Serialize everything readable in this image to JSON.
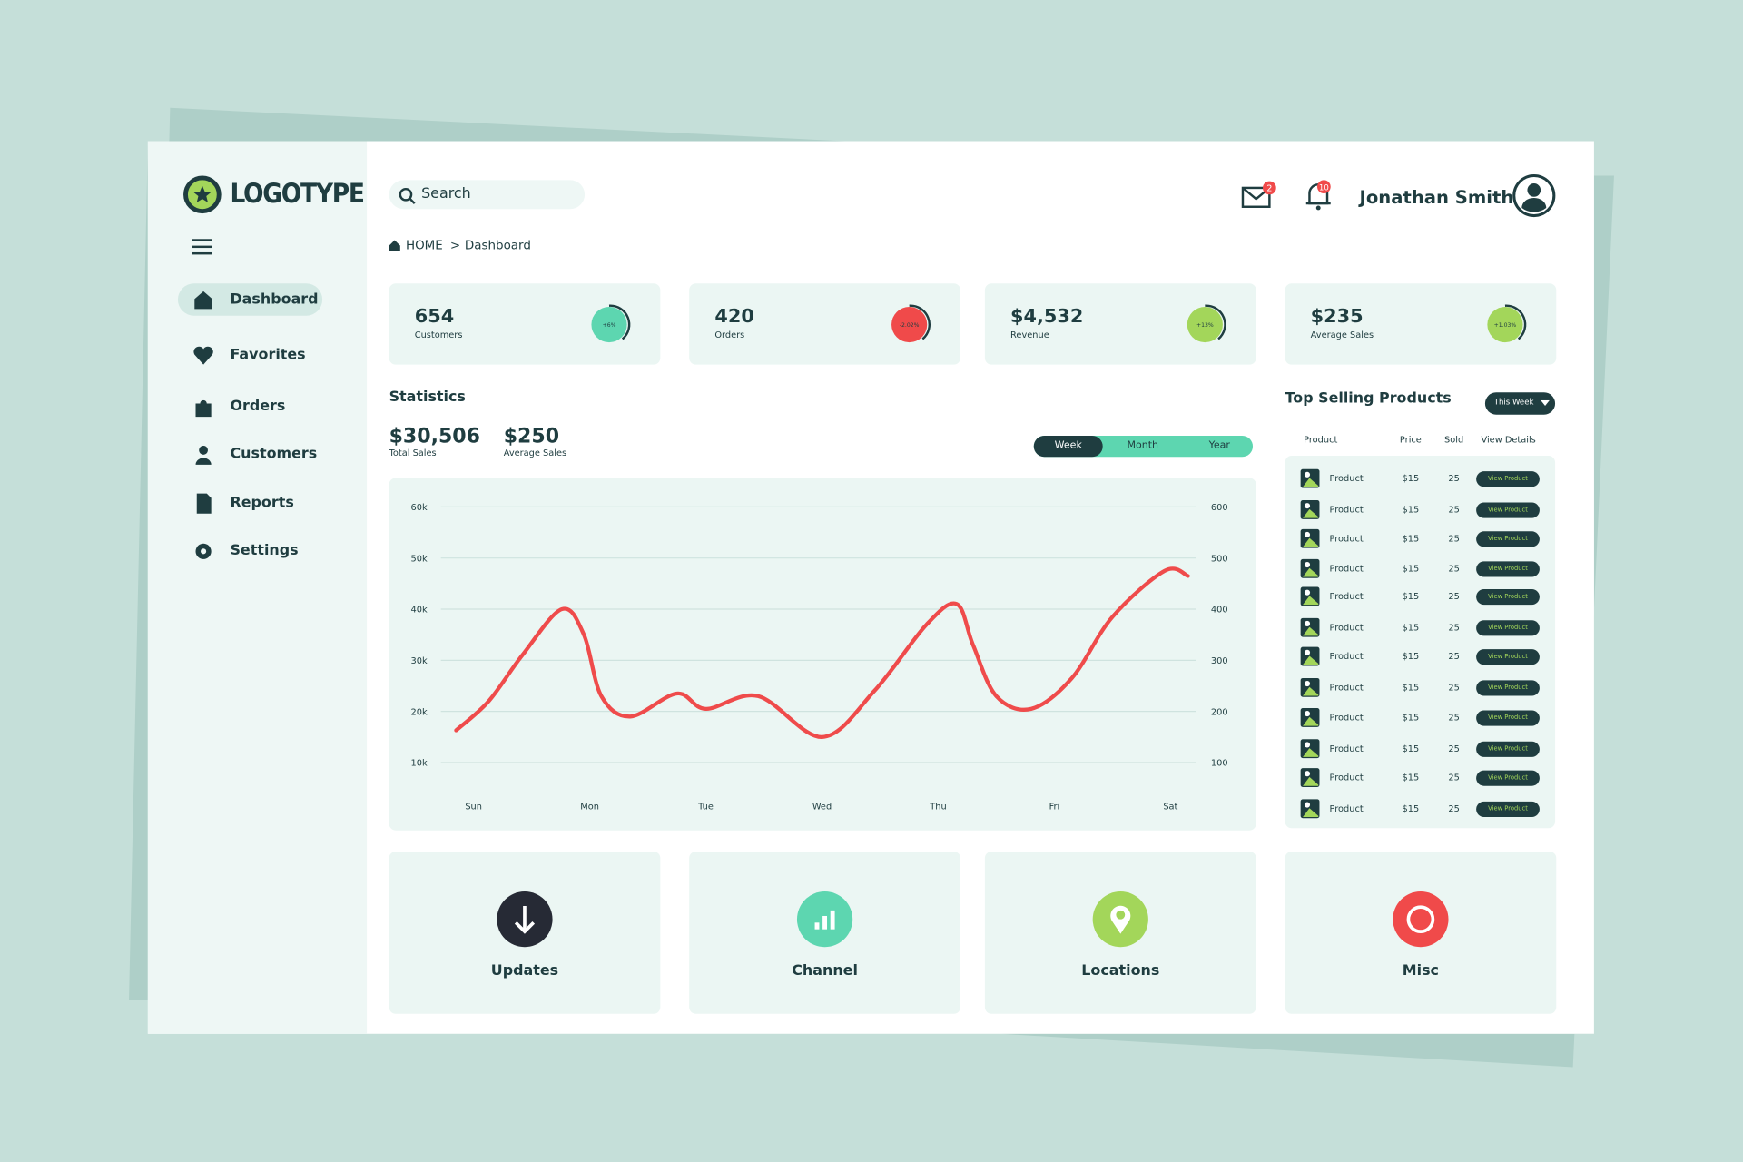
{
  "logo": "LOGOTYPE",
  "search_placeholder": "Search",
  "nav": [
    "Dashboard",
    "Favorites",
    "Orders",
    "Customers",
    "Reports",
    "Settings"
  ],
  "breadcrumb": [
    "HOME",
    ">",
    "Dashboard"
  ],
  "user": {
    "name": "Jonathan Smith",
    "mail_count": 2,
    "bell_count": 10
  },
  "kpis": [
    {
      "value": "654",
      "label": "Customers",
      "change": "+6%",
      "color": "#5dd6b0"
    },
    {
      "value": "420",
      "label": "Orders",
      "change": "-2.02%",
      "color": "#f04a4a"
    },
    {
      "value": "$4,532",
      "label": "Revenue",
      "change": "+13%",
      "color": "#a3d65a"
    },
    {
      "value": "$235",
      "label": "Average Sales",
      "change": "+1.03%",
      "color": "#a3d65a"
    }
  ],
  "statistics": {
    "title": "Statistics",
    "total": "$30,506",
    "total_label": "Total Sales",
    "average": "$250",
    "average_label": "Average Sales",
    "periods": [
      "Week",
      "Month",
      "Year"
    ]
  },
  "chart_data": {
    "type": "line",
    "color": "#ef4b4b",
    "grid": true,
    "x": [
      -0.15,
      0.13,
      0.42,
      0.76,
      0.95,
      1.1,
      1.35,
      1.75,
      2.0,
      2.45,
      3.0,
      3.45,
      3.9,
      4.16,
      4.3,
      4.5,
      4.8,
      5.15,
      5.5,
      5.95,
      6.15
    ],
    "values": [
      16300,
      22000,
      31000,
      40000,
      35000,
      23000,
      19000,
      23500,
      20500,
      23000,
      15000,
      24000,
      37000,
      41000,
      33000,
      23000,
      20500,
      26500,
      38500,
      47500,
      46500
    ],
    "xlim": [
      -0.3,
      6.3
    ],
    "xticks": [
      {
        "value": 0,
        "label": "Sun"
      },
      {
        "value": 1,
        "label": "Mon"
      },
      {
        "value": 2,
        "label": "Tue"
      },
      {
        "value": 3,
        "label": "Wed"
      },
      {
        "value": 4,
        "label": "Thu"
      },
      {
        "value": 5,
        "label": "Fri"
      },
      {
        "value": 6,
        "label": "Sat"
      }
    ],
    "ylim": [
      10000,
      60000
    ],
    "yticks": [
      {
        "value": 10000,
        "label": "10k"
      },
      {
        "value": 20000,
        "label": "20k"
      },
      {
        "value": 30000,
        "label": "30k"
      },
      {
        "value": 40000,
        "label": "40k"
      },
      {
        "value": 50000,
        "label": "50k"
      },
      {
        "value": 60000,
        "label": "60k"
      }
    ],
    "y2lim": [
      100,
      600
    ],
    "y2ticks": [
      100,
      200,
      300,
      400,
      500,
      600
    ]
  },
  "top_products": {
    "title": "Top Selling Products",
    "filter": "This Week",
    "columns": [
      "Product",
      "Price",
      "Sold",
      "View Details"
    ],
    "rows": [
      [
        "Product",
        "$15",
        "25",
        "View Product"
      ],
      [
        "Product",
        "$15",
        "25",
        "View Product"
      ],
      [
        "Product",
        "$15",
        "25",
        "View Product"
      ],
      [
        "Product",
        "$15",
        "25",
        "View Product"
      ],
      [
        "Product",
        "$15",
        "25",
        "View Product"
      ],
      [
        "Product",
        "$15",
        "25",
        "View Product"
      ],
      [
        "Product",
        "$15",
        "25",
        "View Product"
      ],
      [
        "Product",
        "$15",
        "25",
        "View Product"
      ],
      [
        "Product",
        "$15",
        "25",
        "View Product"
      ],
      [
        "Product",
        "$15",
        "25",
        "View Product"
      ],
      [
        "Product",
        "$15",
        "25",
        "View Product"
      ],
      [
        "Product",
        "$15",
        "25",
        "View Product"
      ]
    ]
  },
  "tiles": [
    {
      "label": "Updates",
      "color": "#262a35"
    },
    {
      "label": "Channel",
      "color": "#5dd6b0"
    },
    {
      "label": "Locations",
      "color": "#a3d65a"
    },
    {
      "label": "Misc",
      "color": "#f04a4a"
    }
  ]
}
